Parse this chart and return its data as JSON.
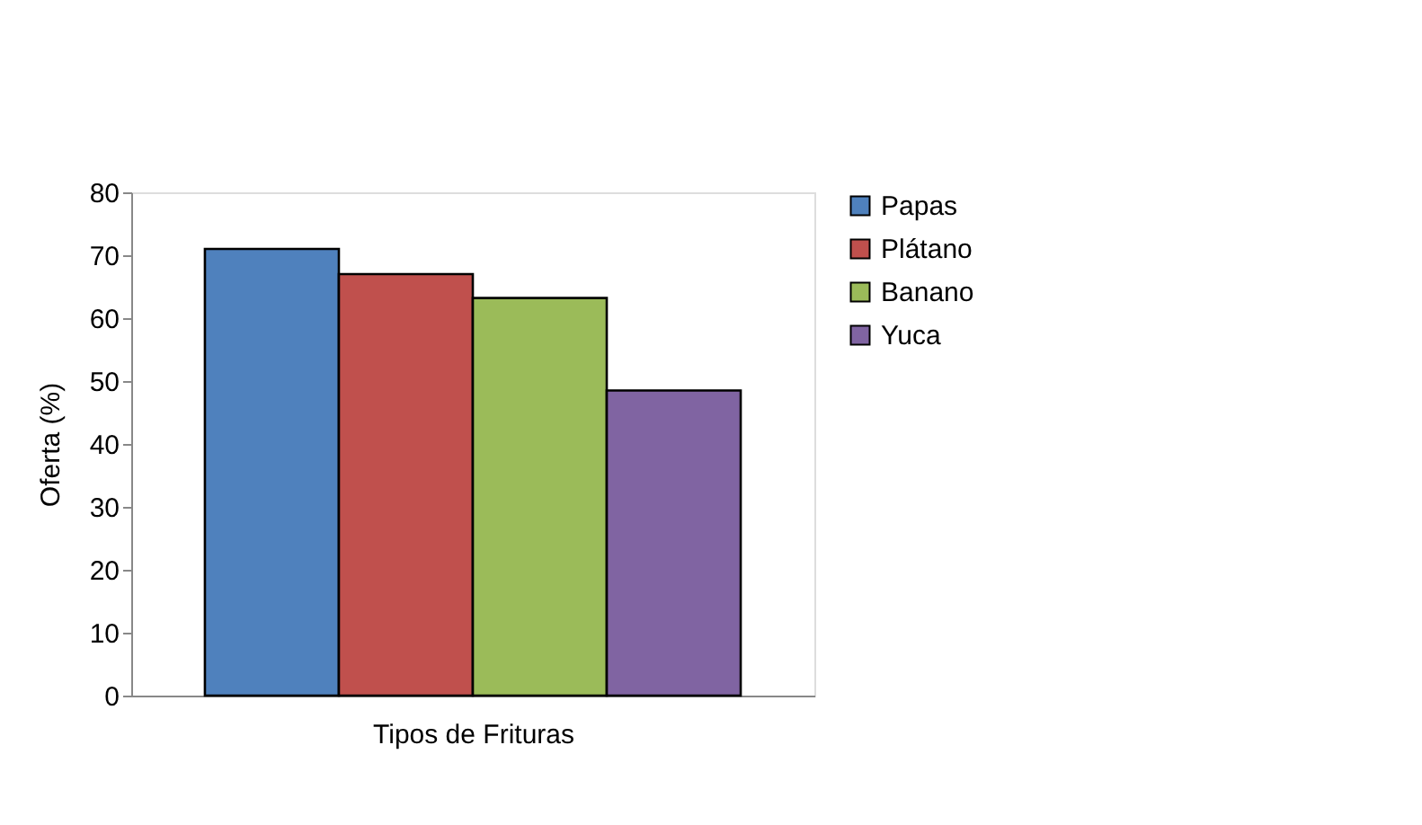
{
  "chart_data": {
    "type": "bar",
    "xlabel": "Tipos de Frituras",
    "ylabel": "Oferta (%)",
    "categories": [
      null
    ],
    "series": [
      {
        "name": "Papas",
        "color": "#4f81bd",
        "values": [
          71
        ]
      },
      {
        "name": "Plátano",
        "color": "#c0504d",
        "values": [
          67
        ]
      },
      {
        "name": "Banano",
        "color": "#9bbb59",
        "values": [
          63.2
        ]
      },
      {
        "name": "Yuca",
        "color": "#8064a2",
        "values": [
          48.5
        ]
      }
    ],
    "ylim": [
      0,
      80
    ],
    "yticks": [
      0,
      10,
      20,
      30,
      40,
      50,
      60,
      70,
      80
    ],
    "grid": false,
    "legend": "right"
  }
}
